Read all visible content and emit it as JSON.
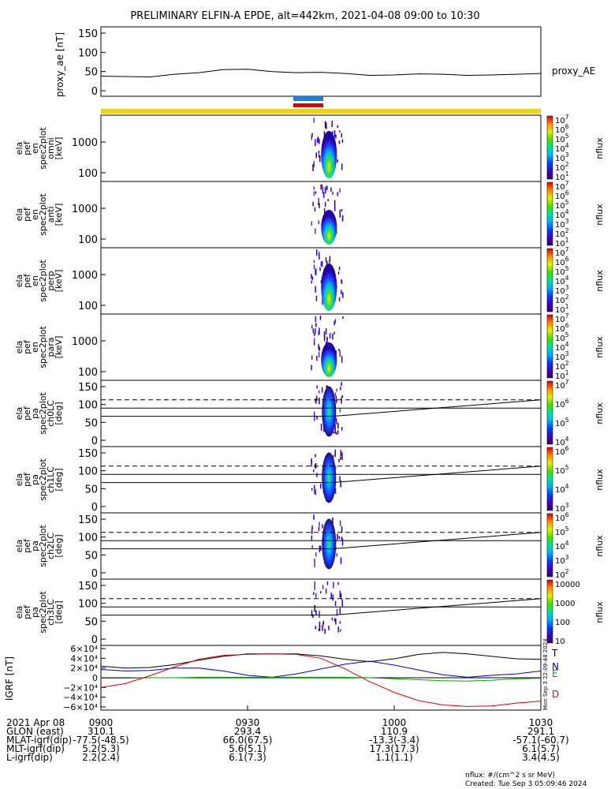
{
  "chart_data": {
    "type": "multi-panel spectrogram",
    "title": "PRELIMINARY ELFIN-A EPDE, alt=442km, 2021-04-08 09:00 to 10:30",
    "ae_panel": {
      "ylabel": "proxy_ae [nT]",
      "series_name": "proxy_AE",
      "yticks": [
        "150",
        "100",
        "50",
        "0"
      ],
      "ylim": [
        0,
        150
      ],
      "x_minutes": [
        0,
        5,
        10,
        15,
        20,
        25,
        30,
        35,
        40,
        45,
        50,
        55,
        60,
        65,
        70,
        75,
        80,
        85,
        90
      ],
      "values": [
        38,
        37,
        36,
        43,
        47,
        55,
        56,
        50,
        47,
        48,
        45,
        40,
        41,
        44,
        43,
        40,
        41,
        43,
        45
      ]
    },
    "spectrogram_panels": [
      {
        "label": [
          "ela",
          "pef",
          "en",
          "spec2plot",
          "omni",
          "[keV]"
        ],
        "yticks": [
          "1000",
          "100"
        ],
        "cb_ticks": [
          "10^7",
          "10^6",
          "10^5",
          "10^4",
          "10^3",
          "10^2",
          "10^1"
        ],
        "cb_label": "nflux"
      },
      {
        "label": [
          "ela",
          "pef",
          "en",
          "spec2plot",
          "anti",
          "[keV]"
        ],
        "yticks": [
          "1000",
          "100"
        ],
        "cb_ticks": [
          "10^7",
          "10^6",
          "10^5",
          "10^4",
          "10^3",
          "10^2",
          "10^1"
        ],
        "cb_label": "nflux"
      },
      {
        "label": [
          "ela",
          "pef",
          "en",
          "spec2plot",
          "perp",
          "[keV]"
        ],
        "yticks": [
          "1000",
          "100"
        ],
        "cb_ticks": [
          "10^7",
          "10^6",
          "10^5",
          "10^4",
          "10^3",
          "10^2",
          "10^1"
        ],
        "cb_label": "nflux"
      },
      {
        "label": [
          "ela",
          "pef",
          "en",
          "spec2plot",
          "para",
          "[keV]"
        ],
        "yticks": [
          "1000",
          "100"
        ],
        "cb_ticks": [
          "10^7",
          "10^6",
          "10^5",
          "10^4",
          "10^3",
          "10^2",
          "10^1"
        ],
        "cb_label": "nflux"
      },
      {
        "label": [
          "ela",
          "pef",
          "pa",
          "spec2plot",
          "ch0LC",
          "[deg]"
        ],
        "yticks": [
          "150",
          "100",
          "50",
          "0"
        ],
        "cb_ticks": [
          "10^7",
          "10^6",
          "10^5",
          "10^4"
        ],
        "cb_label": "nflux"
      },
      {
        "label": [
          "ela",
          "pef",
          "pa",
          "spec2plot",
          "ch1LC",
          "[deg]"
        ],
        "yticks": [
          "150",
          "100",
          "50",
          "0"
        ],
        "cb_ticks": [
          "10^6",
          "10^5",
          "10^4",
          "10^3"
        ],
        "cb_label": "nflux"
      },
      {
        "label": [
          "ela",
          "pef",
          "pa",
          "spec2plot",
          "ch2LC",
          "[deg]"
        ],
        "yticks": [
          "150",
          "100",
          "50",
          "0"
        ],
        "cb_ticks": [
          "10^6",
          "10^5",
          "10^4",
          "10^3",
          "10^2"
        ],
        "cb_label": "nflux"
      },
      {
        "label": [
          "ela",
          "pef",
          "pa",
          "spec2plot",
          "ch3LC",
          "[deg]"
        ],
        "yticks": [
          "150",
          "100",
          "50",
          "0"
        ],
        "cb_ticks": [
          "10000",
          "1000",
          "100",
          "10"
        ],
        "cb_label": "nflux"
      }
    ],
    "igrf_panel": {
      "ylabel": "IGRF [nT]",
      "yticks": [
        "6×10⁴",
        "4×10⁴",
        "2×10⁴",
        "0",
        "−2×10⁴",
        "−4×10⁴",
        "−6×10⁴"
      ],
      "ylim": [
        -60000,
        60000
      ],
      "legend": [
        "T",
        "N",
        "E",
        "D"
      ],
      "side_stamp": "Mon Sep  3 22:09:48 2024",
      "x_minutes": [
        0,
        5,
        10,
        15,
        20,
        25,
        30,
        35,
        40,
        45,
        50,
        55,
        60,
        65,
        70,
        75,
        80,
        85,
        90
      ],
      "series": [
        {
          "name": "T",
          "color": "#000000",
          "values": [
            24000,
            20000,
            21000,
            27000,
            36000,
            44000,
            49000,
            49000,
            49000,
            45000,
            38000,
            33000,
            39000,
            48000,
            52000,
            49000,
            44000,
            39000,
            38000
          ]
        },
        {
          "name": "N",
          "color": "#0000cc",
          "values": [
            17000,
            14000,
            15000,
            20000,
            20000,
            14000,
            5000,
            1000,
            8000,
            18000,
            28000,
            34000,
            26000,
            16000,
            6000,
            1000,
            5000,
            8000,
            14000
          ]
        },
        {
          "name": "E",
          "color": "#00aa00",
          "values": [
            -1000,
            -1000,
            0,
            0,
            1000,
            1000,
            1000,
            1000,
            1000,
            1000,
            1000,
            0,
            -2000,
            -4000,
            -6000,
            -7000,
            -5000,
            -2000,
            -1000
          ]
        },
        {
          "name": "D",
          "color": "#dd0000",
          "values": [
            -20000,
            -12000,
            4000,
            22000,
            38000,
            46000,
            48000,
            49000,
            48000,
            40000,
            18000,
            -8000,
            -30000,
            -47000,
            -56000,
            -59000,
            -58000,
            -52000,
            -48000
          ]
        }
      ]
    },
    "xaxis": {
      "row_labels": [
        "2021 Apr 08",
        "GLON (east)",
        "MLAT-igrf(dip)",
        "MLT-igrf(dip)",
        "L-igrf(dip)"
      ],
      "columns": [
        {
          "time": "0900",
          "values": [
            "310.1",
            "-77.5(-48.5)",
            "5.2(5.3)",
            "2.2(2.4)"
          ]
        },
        {
          "time": "0930",
          "values": [
            "293.4",
            "66.0(67.5)",
            "5.6(5.1)",
            "6.1(7.3)"
          ]
        },
        {
          "time": "1000",
          "values": [
            "110.9",
            "-13.3(-3.4)",
            "17.3(17.3)",
            "1.1(1.1)"
          ]
        },
        {
          "time": "1030",
          "values": [
            "291.1",
            "-57.1(-60.7)",
            "6.1(5.7)",
            "3.4(4.5)"
          ]
        }
      ]
    },
    "footer": {
      "units": "nflux: #/(cm^2 s sr MeV)",
      "created": "Created: Tue Sep  3 05:09:46 2024"
    }
  }
}
